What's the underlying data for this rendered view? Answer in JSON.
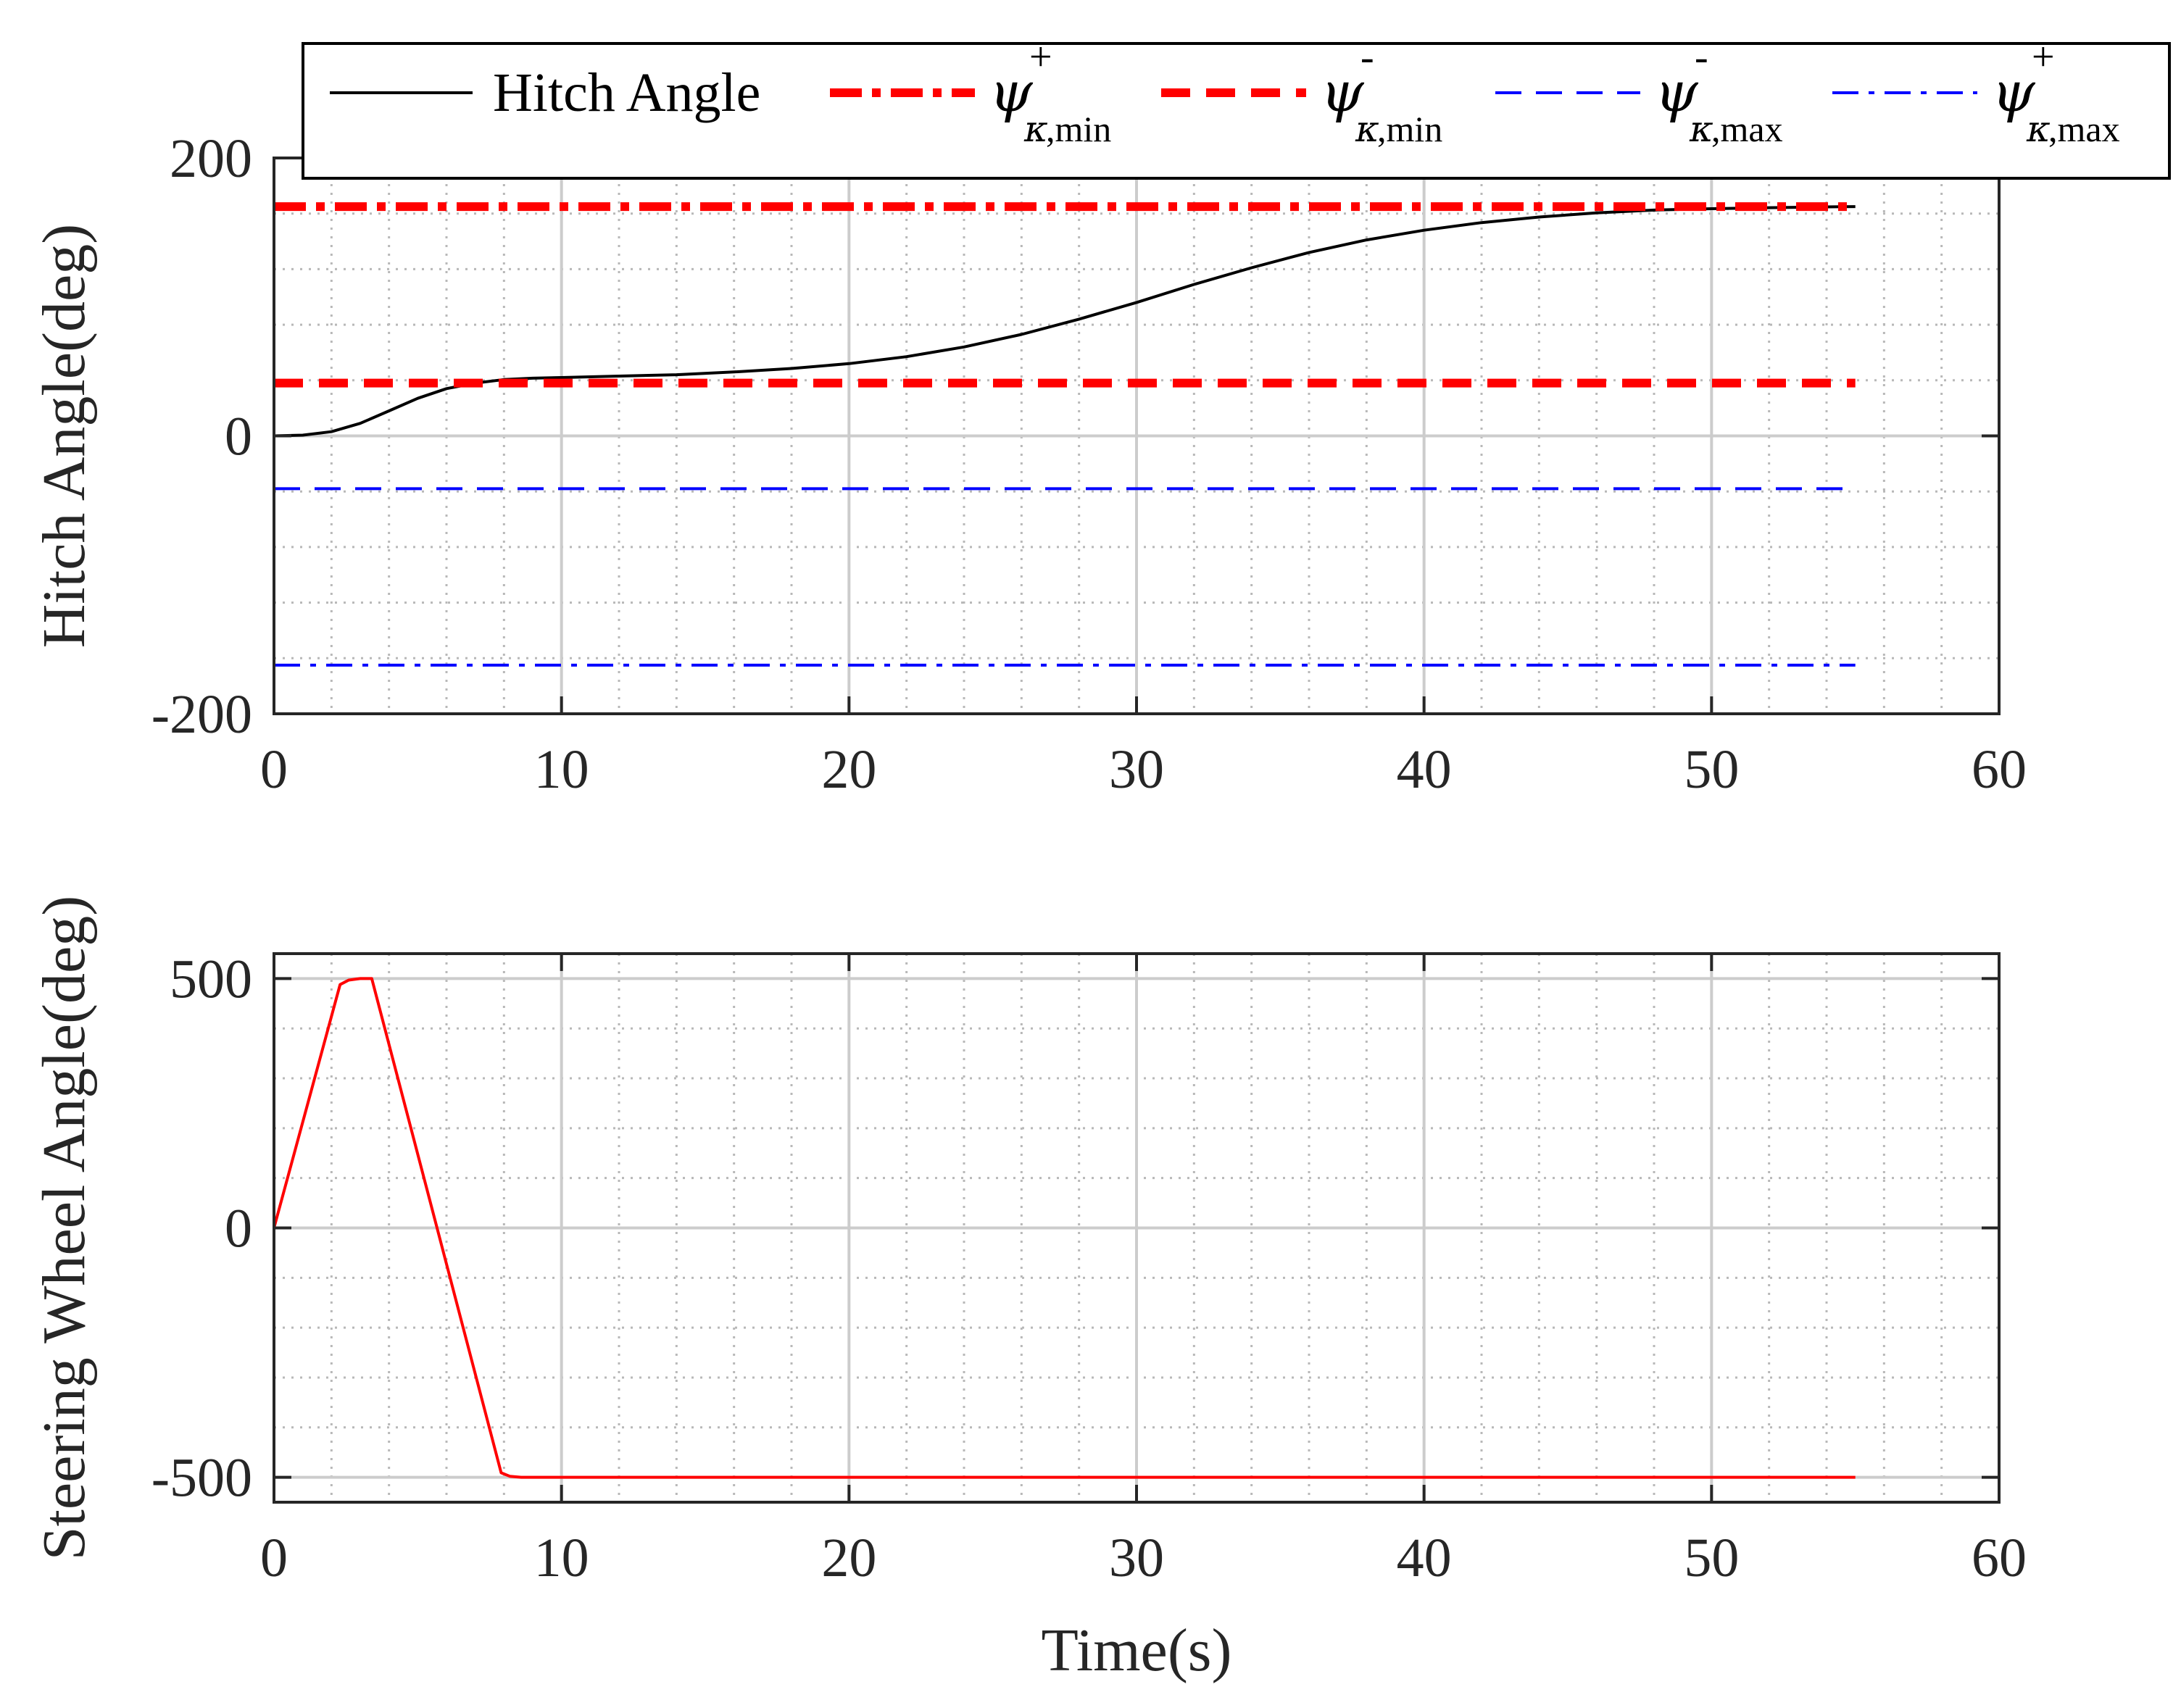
{
  "colors": {
    "black": "#000000",
    "red": "#ff0000",
    "blue": "#0000ff",
    "grid": "#cccccc",
    "axis": "#262626"
  },
  "legend": {
    "items": [
      {
        "name": "legend-hitch-angle",
        "label": "Hitch Angle",
        "color": "#000000",
        "style": "solid"
      },
      {
        "name": "legend-psi-min-plus",
        "symbol": "ψ",
        "sup": "+",
        "sub_greek": "κ",
        "sub": ",min",
        "color": "#ff0000",
        "style": "dashdot-thick"
      },
      {
        "name": "legend-psi-min-minus",
        "symbol": "ψ",
        "sup": "-",
        "sub_greek": "κ",
        "sub": ",min",
        "color": "#ff0000",
        "style": "dash-thick"
      },
      {
        "name": "legend-psi-max-minus",
        "symbol": "ψ",
        "sup": "-",
        "sub_greek": "κ",
        "sub": ",max",
        "color": "#0000ff",
        "style": "dash-thin"
      },
      {
        "name": "legend-psi-max-plus",
        "symbol": "ψ",
        "sup": "+",
        "sub_greek": "κ",
        "sub": ",max",
        "color": "#0000ff",
        "style": "dashdot-thin"
      }
    ]
  },
  "chart_data": [
    {
      "type": "line",
      "title": "",
      "xlabel": "",
      "ylabel": "Hitch Angle(deg)",
      "xlim": [
        0,
        60
      ],
      "ylim": [
        -200,
        200
      ],
      "xticks": [
        0,
        10,
        20,
        30,
        40,
        50,
        60
      ],
      "yticks": [
        -200,
        0,
        200
      ],
      "grid": true,
      "legend_position": "top",
      "series": [
        {
          "name": "Hitch Angle",
          "color": "#000000",
          "style": "solid",
          "x": [
            0,
            1,
            2,
            3,
            4,
            5,
            6,
            7,
            8,
            9,
            10,
            12,
            14,
            16,
            18,
            20,
            22,
            24,
            26,
            28,
            30,
            32,
            34,
            36,
            38,
            40,
            42,
            44,
            46,
            48,
            50,
            52,
            54,
            55
          ],
          "y": [
            0,
            0.5,
            3,
            9,
            18,
            27,
            34,
            38,
            40.5,
            41.5,
            42,
            43,
            44,
            46,
            48.5,
            52,
            57,
            64,
            73,
            84,
            96,
            109,
            121,
            132,
            141,
            148,
            153.5,
            157.5,
            160.5,
            162.5,
            163.5,
            164.2,
            164.8,
            165
          ]
        },
        {
          "name": "psi_kappa_min_plus",
          "color": "#ff0000",
          "style": "dashdot-thick",
          "x": [
            0,
            55
          ],
          "y": [
            165,
            165
          ]
        },
        {
          "name": "psi_kappa_min_minus",
          "color": "#ff0000",
          "style": "dash-thick",
          "x": [
            0,
            55
          ],
          "y": [
            38,
            38
          ]
        },
        {
          "name": "psi_kappa_max_minus",
          "color": "#0000ff",
          "style": "dash-thin",
          "x": [
            0,
            55
          ],
          "y": [
            -38,
            -38
          ]
        },
        {
          "name": "psi_kappa_max_plus",
          "color": "#0000ff",
          "style": "dashdot-thin",
          "x": [
            0,
            55
          ],
          "y": [
            -165,
            -165
          ]
        }
      ]
    },
    {
      "type": "line",
      "title": "",
      "xlabel": "Time(s)",
      "ylabel": "Steering Wheel Angle(deg)",
      "xlim": [
        0,
        60
      ],
      "ylim": [
        -550,
        550
      ],
      "xticks": [
        0,
        10,
        20,
        30,
        40,
        50,
        60
      ],
      "yticks": [
        -500,
        0,
        500
      ],
      "grid": true,
      "series": [
        {
          "name": "Steering Wheel Angle",
          "color": "#ff0000",
          "style": "solid",
          "x": [
            0,
            2.3,
            2.6,
            3.0,
            3.4,
            7.9,
            8.2,
            8.6,
            55
          ],
          "y": [
            0,
            488,
            497,
            500,
            500,
            -491,
            -498,
            -500,
            -500
          ]
        }
      ]
    }
  ]
}
